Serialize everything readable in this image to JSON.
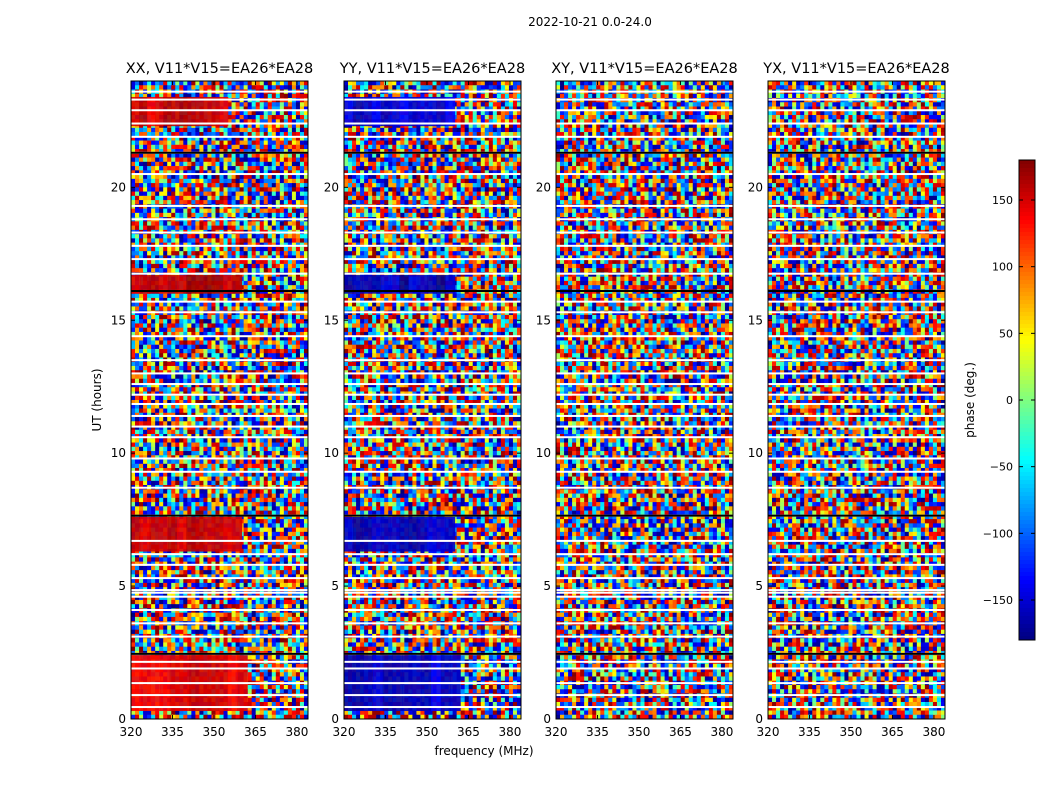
{
  "figure": {
    "suptitle": "2022-10-21 0.0-24.0",
    "ylabel": "UT (hours)",
    "xlabel": "frequency (MHz)",
    "colorbar_label": "phase (deg.)",
    "colorbar_ticks": [
      "150",
      "100",
      "50",
      "0",
      "−50",
      "−100",
      "−150"
    ],
    "colorbar_tick_values": [
      150,
      100,
      50,
      0,
      -50,
      -100,
      -150
    ],
    "colorbar_range": [
      -180,
      180
    ],
    "colormap": "jet",
    "colormap_stops": [
      "#00007f",
      "#0000ff",
      "#007fff",
      "#00ffff",
      "#7fff7f",
      "#ffff00",
      "#ff7f00",
      "#ff0000",
      "#7f0000"
    ]
  },
  "chart_data": [
    {
      "type": "heatmap",
      "title": "XX, V11*V15=EA26*EA28",
      "xlim": [
        320,
        384
      ],
      "ylim": [
        0,
        24
      ],
      "xticks": [
        "320",
        "335",
        "350",
        "365",
        "380"
      ],
      "xtick_values": [
        320,
        335,
        350,
        365,
        380
      ],
      "yticks": [
        "0",
        "5",
        "10",
        "15",
        "20"
      ],
      "ytick_values": [
        0,
        5,
        10,
        15,
        20
      ],
      "smooth_bands": [
        {
          "t_start": 0.3,
          "t_end": 2.4,
          "f_end": 362,
          "phase": 140
        },
        {
          "t_start": 6.3,
          "t_end": 7.6,
          "f_end": 360,
          "phase": 155
        },
        {
          "t_start": 16.0,
          "t_end": 16.7,
          "f_end": 360,
          "phase": 160
        },
        {
          "t_start": 22.3,
          "t_end": 23.4,
          "f_end": 355,
          "phase": 150
        }
      ]
    },
    {
      "type": "heatmap",
      "title": "YY, V11*V15=EA26*EA28",
      "xlim": [
        320,
        384
      ],
      "ylim": [
        0,
        24
      ],
      "xticks": [
        "320",
        "335",
        "350",
        "365",
        "380"
      ],
      "xtick_values": [
        320,
        335,
        350,
        365,
        380
      ],
      "yticks": [
        "0",
        "5",
        "10",
        "15",
        "20"
      ],
      "ytick_values": [
        0,
        5,
        10,
        15,
        20
      ],
      "smooth_bands": [
        {
          "t_start": 0.3,
          "t_end": 2.4,
          "f_end": 362,
          "phase": -150
        },
        {
          "t_start": 6.3,
          "t_end": 7.6,
          "f_end": 360,
          "phase": -155
        },
        {
          "t_start": 16.0,
          "t_end": 16.7,
          "f_end": 360,
          "phase": -160
        },
        {
          "t_start": 22.3,
          "t_end": 23.4,
          "f_end": 360,
          "phase": -150
        }
      ]
    },
    {
      "type": "heatmap",
      "title": "XY, V11*V15=EA26*EA28",
      "xlim": [
        320,
        384
      ],
      "ylim": [
        0,
        24
      ],
      "xticks": [
        "320",
        "335",
        "350",
        "365",
        "380"
      ],
      "xtick_values": [
        320,
        335,
        350,
        365,
        380
      ],
      "yticks": [
        "0",
        "5",
        "10",
        "15",
        "20"
      ],
      "ytick_values": [
        0,
        5,
        10,
        15,
        20
      ],
      "smooth_bands": []
    },
    {
      "type": "heatmap",
      "title": "YX, V11*V15=EA26*EA28",
      "xlim": [
        320,
        384
      ],
      "ylim": [
        0,
        24
      ],
      "xticks": [
        "320",
        "335",
        "350",
        "365",
        "380"
      ],
      "xtick_values": [
        320,
        335,
        350,
        365,
        380
      ],
      "yticks": [
        "0",
        "5",
        "10",
        "15",
        "20"
      ],
      "ytick_values": [
        0,
        5,
        10,
        15,
        20
      ],
      "smooth_bands": []
    }
  ],
  "flagged_gaps_hours": [
    0.45,
    0.9,
    1.35,
    1.9,
    2.15,
    2.45,
    3.1,
    3.6,
    4.1,
    4.6,
    4.75,
    4.85,
    5.3,
    5.8,
    6.2,
    6.7,
    7.65,
    8.7,
    9.3,
    9.8,
    10.6,
    11.0,
    11.4,
    11.85,
    12.2,
    12.6,
    13.0,
    13.5,
    14.4,
    15.3,
    15.7,
    16.1,
    16.75,
    17.3,
    17.8,
    18.3,
    18.8,
    19.3,
    20.5,
    21.3,
    21.9,
    22.4,
    22.9,
    23.3,
    23.6
  ]
}
